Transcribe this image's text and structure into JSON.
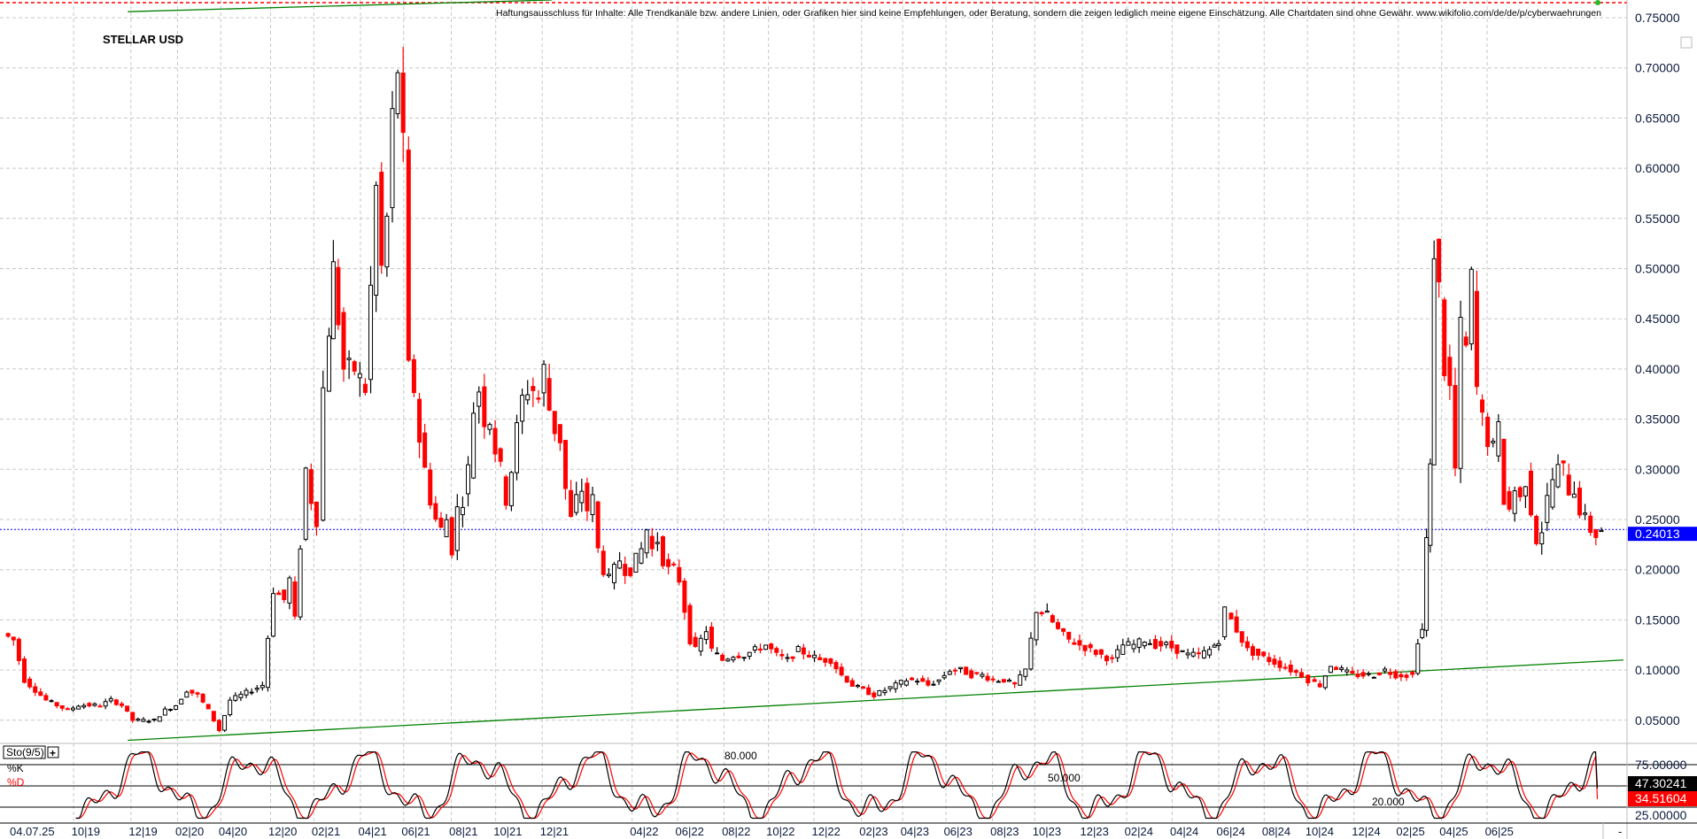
{
  "header": {
    "symbol_title": "STELLAR USD",
    "disclaimer": "Haftungsausschluss für Inhalte: Alle Trendkanäle bzw. andere Linien, oder Grafiken hier sind keine Empfehlungen, oder Beratung, sondern die zeigen lediglich meine eigene Einschätzung. Alle Chartdaten sind ohne Gewähr. www.wikifolio.com/de/de/p/cyberwaehrungen"
  },
  "colors": {
    "up_candle": "#000000",
    "down_candle": "#ff0000",
    "trendline": "#008000",
    "current_price": "#0000ff",
    "stoch_k": "#000000",
    "stoch_d": "#ff0000"
  },
  "chart_data": {
    "type": "candlestick",
    "title": "STELLAR USD",
    "ylim": [
      0.03,
      0.765
    ],
    "y_ticks": [
      "0.75000",
      "0.70000",
      "0.65000",
      "0.60000",
      "0.55000",
      "0.50000",
      "0.45000",
      "0.40000",
      "0.35000",
      "0.30000",
      "0.25000",
      "0.20000",
      "0.15000",
      "0.10000",
      "0.05000"
    ],
    "x_tick_labels": [
      "04.07.25",
      "10|19",
      "12|19",
      "02|20",
      "04|20",
      "12|20",
      "02|21",
      "04|21",
      "06|21",
      "08|21",
      "10|21",
      "12|21",
      "04|22",
      "06|22",
      "08|22",
      "10|22",
      "12|22",
      "02|23",
      "04|23",
      "06|23",
      "08|23",
      "10|23",
      "12|23",
      "02|24",
      "04|24",
      "06|24",
      "08|24",
      "10|24",
      "12|24",
      "02|25",
      "04|25",
      "06|25"
    ],
    "grid": true,
    "approx_closes": [
      0.13,
      0.09,
      0.08,
      0.07,
      0.065,
      0.06,
      0.065,
      0.065,
      0.065,
      0.07,
      0.065,
      0.05,
      0.05,
      0.05,
      0.06,
      0.065,
      0.08,
      0.075,
      0.06,
      0.04,
      0.07,
      0.075,
      0.08,
      0.085,
      0.18,
      0.17,
      0.19,
      0.15,
      0.3,
      0.27,
      0.25,
      0.38,
      0.5,
      0.4,
      0.4,
      0.38,
      0.48,
      0.58,
      0.5,
      0.55,
      0.65,
      0.7,
      0.62,
      0.4,
      0.38,
      0.33,
      0.3,
      0.27,
      0.25,
      0.24,
      0.25,
      0.22,
      0.26,
      0.27,
      0.3,
      0.36,
      0.38,
      0.35,
      0.35,
      0.32,
      0.3,
      0.27,
      0.3,
      0.34,
      0.37,
      0.38,
      0.38,
      0.37,
      0.4,
      0.36,
      0.34,
      0.33,
      0.28,
      0.25,
      0.27,
      0.28,
      0.26,
      0.27,
      0.22,
      0.2,
      0.19,
      0.2,
      0.21,
      0.2,
      0.2,
      0.21,
      0.22,
      0.24,
      0.22,
      0.23,
      0.21,
      0.2,
      0.2,
      0.19,
      0.16,
      0.13,
      0.12,
      0.13,
      0.14,
      0.12,
      0.11,
      0.115,
      0.115,
      0.12,
      0.125,
      0.115,
      0.11,
      0.12,
      0.115,
      0.11,
      0.11,
      0.095,
      0.085,
      0.08,
      0.075,
      0.08,
      0.085,
      0.09,
      0.09,
      0.085,
      0.09,
      0.1,
      0.1,
      0.095,
      0.095,
      0.09,
      0.09,
      0.085,
      0.1,
      0.16,
      0.155,
      0.14,
      0.13,
      0.125,
      0.12,
      0.115,
      0.11,
      0.125,
      0.125,
      0.13,
      0.125,
      0.125,
      0.12,
      0.115,
      0.115,
      0.12,
      0.13,
      0.16,
      0.14,
      0.12,
      0.115,
      0.11,
      0.105,
      0.1,
      0.095,
      0.09,
      0.085,
      0.105,
      0.1,
      0.095,
      0.095,
      0.095,
      0.1,
      0.095,
      0.095,
      0.095,
      0.13,
      0.14,
      0.23,
      0.3,
      0.52,
      0.48,
      0.4,
      0.38,
      0.3,
      0.44,
      0.42,
      0.49,
      0.38,
      0.35,
      0.33,
      0.32,
      0.34,
      0.27,
      0.26,
      0.28,
      0.27,
      0.29,
      0.26,
      0.23,
      0.24,
      0.27,
      0.29,
      0.3,
      0.3,
      0.28,
      0.28,
      0.26,
      0.25,
      0.24,
      0.235,
      0.24
    ],
    "trendlines": [
      {
        "from": 0.03,
        "to": 0.11
      },
      {
        "from": 0.755,
        "to": 0.78
      }
    ],
    "current_price": "0.24013",
    "all_time_high_line": 0.765
  },
  "stochastic": {
    "label": "Sto(9/5)",
    "add_button": "+",
    "k_label": "%K",
    "d_label": "%D",
    "level_80": "80.000",
    "level_50": "50.000",
    "level_20": "20.000",
    "axis_75": "75.00000",
    "axis_25": "25.00000",
    "k_value": "47.30241",
    "d_value": "34.51604"
  },
  "footer": {
    "scroll_marker": "-"
  }
}
